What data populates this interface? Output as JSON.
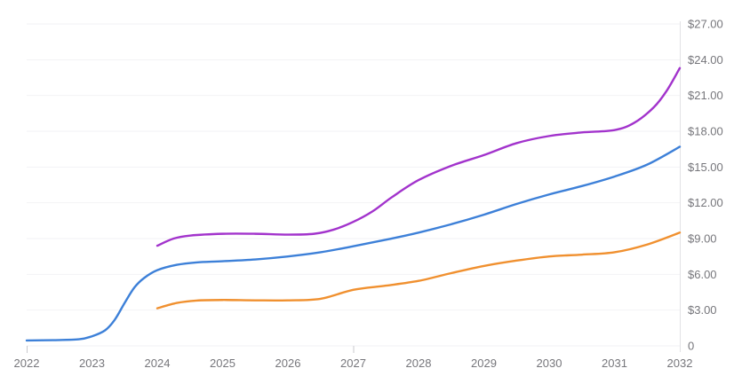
{
  "chart_data": {
    "type": "line",
    "title": "",
    "xlabel": "",
    "ylabel": "",
    "grid": "horizontal",
    "legend": "none",
    "background": "#ffffff",
    "x_axis": {
      "labels": [
        "2022",
        "2023",
        "2024",
        "2025",
        "2026",
        "2027",
        "2028",
        "2029",
        "2030",
        "2031",
        "2032"
      ],
      "range": [
        2022,
        2032
      ],
      "tick_marks_shown": [
        "2022",
        "2027"
      ],
      "label_color": "#76767b"
    },
    "y_axis": {
      "position": "right",
      "labels": [
        "$27.00",
        "$24.00",
        "$21.00",
        "$18.00",
        "$15.00",
        "$12.00",
        "$9.00",
        "$6.00",
        "$3.00",
        "0"
      ],
      "values": [
        27,
        24,
        21,
        18,
        15,
        12,
        9,
        6,
        3,
        0
      ],
      "range": [
        0,
        27
      ],
      "step": 3,
      "unit": "$",
      "label_color": "#76767b"
    },
    "series": [
      {
        "id": "series_blue",
        "color": "#3d80d8",
        "points": [
          [
            2022,
            0.45
          ],
          [
            2022.4,
            0.48
          ],
          [
            2022.8,
            0.55
          ],
          [
            2023,
            0.8
          ],
          [
            2023.2,
            1.3
          ],
          [
            2023.35,
            2.2
          ],
          [
            2023.5,
            3.6
          ],
          [
            2023.65,
            4.9
          ],
          [
            2023.8,
            5.7
          ],
          [
            2024,
            6.35
          ],
          [
            2024.3,
            6.8
          ],
          [
            2024.6,
            7.0
          ],
          [
            2025,
            7.1
          ],
          [
            2025.5,
            7.25
          ],
          [
            2026,
            7.5
          ],
          [
            2026.5,
            7.85
          ],
          [
            2027,
            8.35
          ],
          [
            2027.5,
            8.9
          ],
          [
            2028,
            9.5
          ],
          [
            2028.5,
            10.2
          ],
          [
            2029,
            11.0
          ],
          [
            2029.5,
            11.9
          ],
          [
            2030,
            12.7
          ],
          [
            2030.5,
            13.4
          ],
          [
            2031,
            14.2
          ],
          [
            2031.5,
            15.2
          ],
          [
            2032,
            16.7
          ]
        ]
      },
      {
        "id": "series_purple",
        "color": "#a233cc",
        "points": [
          [
            2024,
            8.4
          ],
          [
            2024.25,
            9.0
          ],
          [
            2024.5,
            9.25
          ],
          [
            2025,
            9.4
          ],
          [
            2025.5,
            9.4
          ],
          [
            2026,
            9.33
          ],
          [
            2026.4,
            9.4
          ],
          [
            2026.7,
            9.75
          ],
          [
            2027,
            10.4
          ],
          [
            2027.3,
            11.3
          ],
          [
            2027.6,
            12.5
          ],
          [
            2028,
            13.9
          ],
          [
            2028.5,
            15.1
          ],
          [
            2029,
            16.0
          ],
          [
            2029.5,
            17.0
          ],
          [
            2030,
            17.6
          ],
          [
            2030.5,
            17.9
          ],
          [
            2031,
            18.1
          ],
          [
            2031.3,
            18.7
          ],
          [
            2031.6,
            20.0
          ],
          [
            2031.8,
            21.4
          ],
          [
            2032,
            23.3
          ]
        ]
      },
      {
        "id": "series_orange",
        "color": "#f0902f",
        "points": [
          [
            2024,
            3.15
          ],
          [
            2024.3,
            3.6
          ],
          [
            2024.6,
            3.8
          ],
          [
            2025,
            3.85
          ],
          [
            2025.5,
            3.82
          ],
          [
            2026,
            3.82
          ],
          [
            2026.5,
            3.95
          ],
          [
            2027,
            4.7
          ],
          [
            2027.5,
            5.05
          ],
          [
            2028,
            5.45
          ],
          [
            2028.5,
            6.1
          ],
          [
            2029,
            6.7
          ],
          [
            2029.5,
            7.15
          ],
          [
            2030,
            7.5
          ],
          [
            2030.5,
            7.65
          ],
          [
            2031,
            7.85
          ],
          [
            2031.5,
            8.5
          ],
          [
            2032,
            9.5
          ]
        ]
      }
    ]
  }
}
